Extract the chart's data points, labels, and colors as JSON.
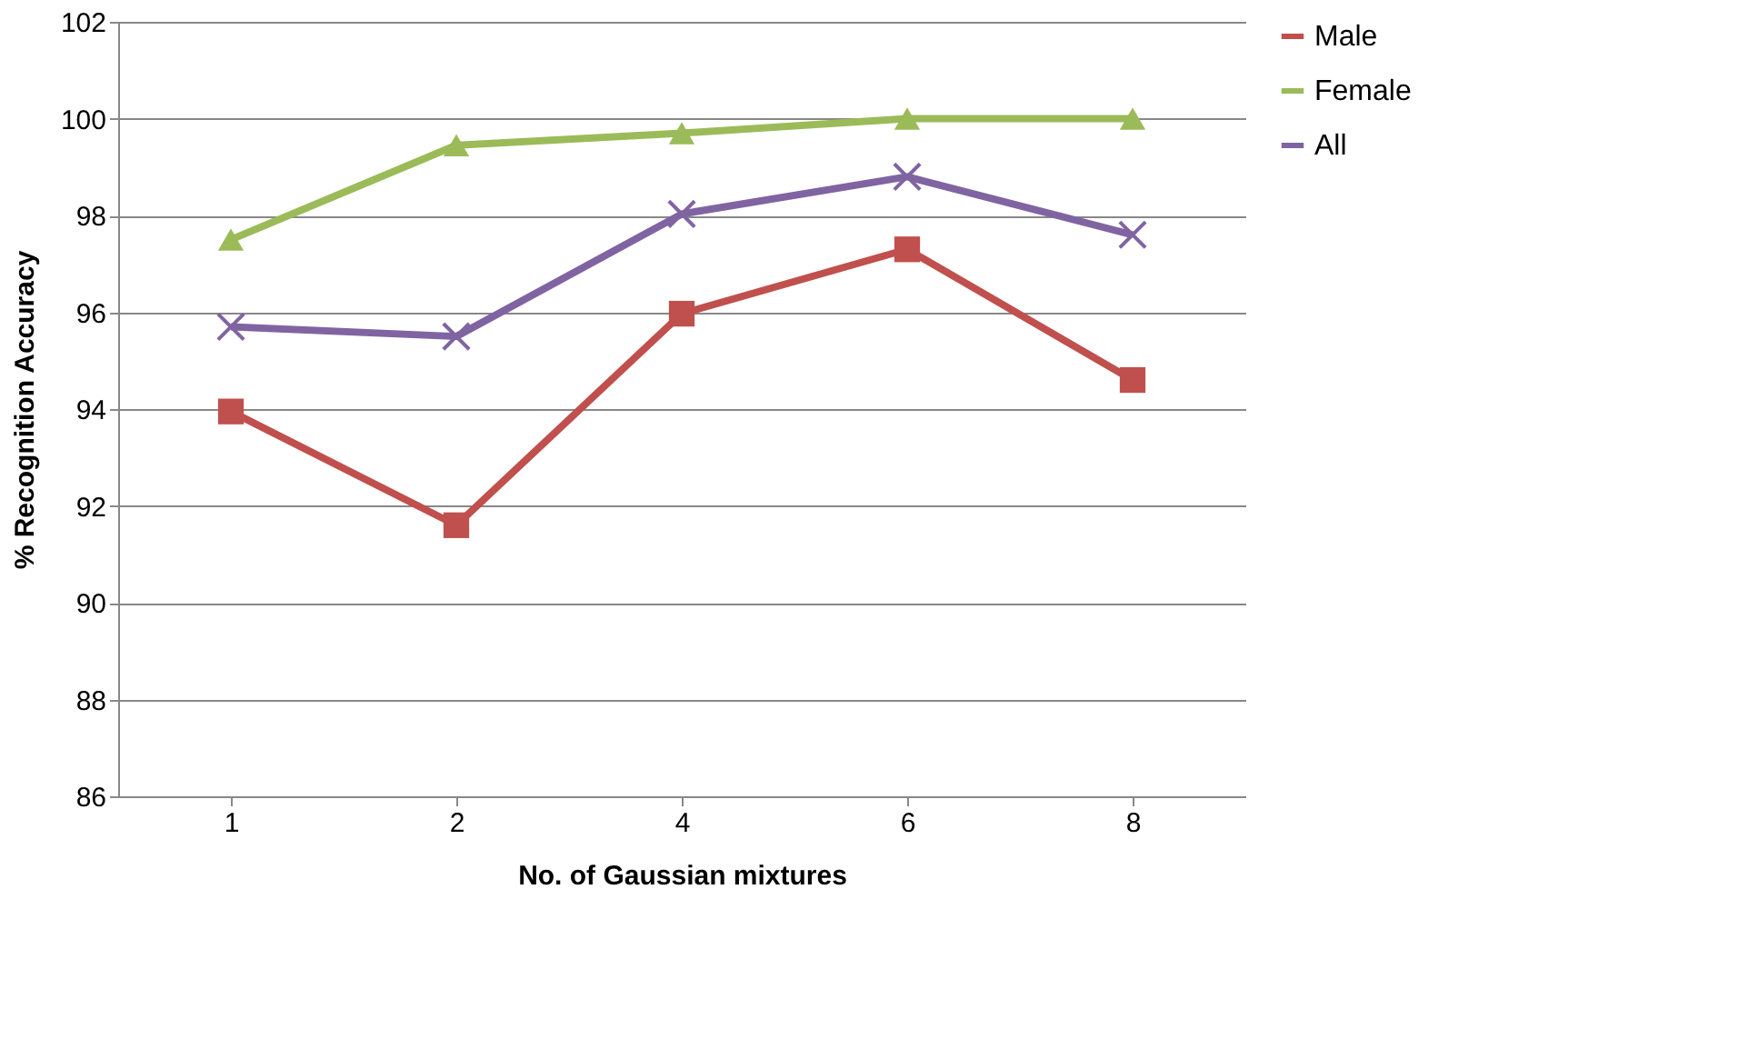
{
  "chart_data": {
    "type": "line",
    "xlabel": "No. of Gaussian mixtures",
    "ylabel": "% Recognition Accuracy",
    "categories": [
      "1",
      "2",
      "4",
      "6",
      "8"
    ],
    "series": [
      {
        "name": "Male",
        "color": "#c0504d",
        "marker": "square",
        "values": [
          93.95,
          91.6,
          95.97,
          97.3,
          94.6
        ]
      },
      {
        "name": "Female",
        "color": "#9bbb59",
        "marker": "triangle",
        "values": [
          97.5,
          99.45,
          99.7,
          100,
          100
        ]
      },
      {
        "name": "All",
        "color": "#8064a2",
        "marker": "cross",
        "values": [
          95.7,
          95.5,
          98.03,
          98.8,
          97.6
        ]
      }
    ],
    "ylim": [
      86,
      102
    ],
    "yticks": [
      86,
      88,
      90,
      92,
      94,
      96,
      98,
      100,
      102
    ],
    "grid": "y",
    "legend": "right"
  }
}
